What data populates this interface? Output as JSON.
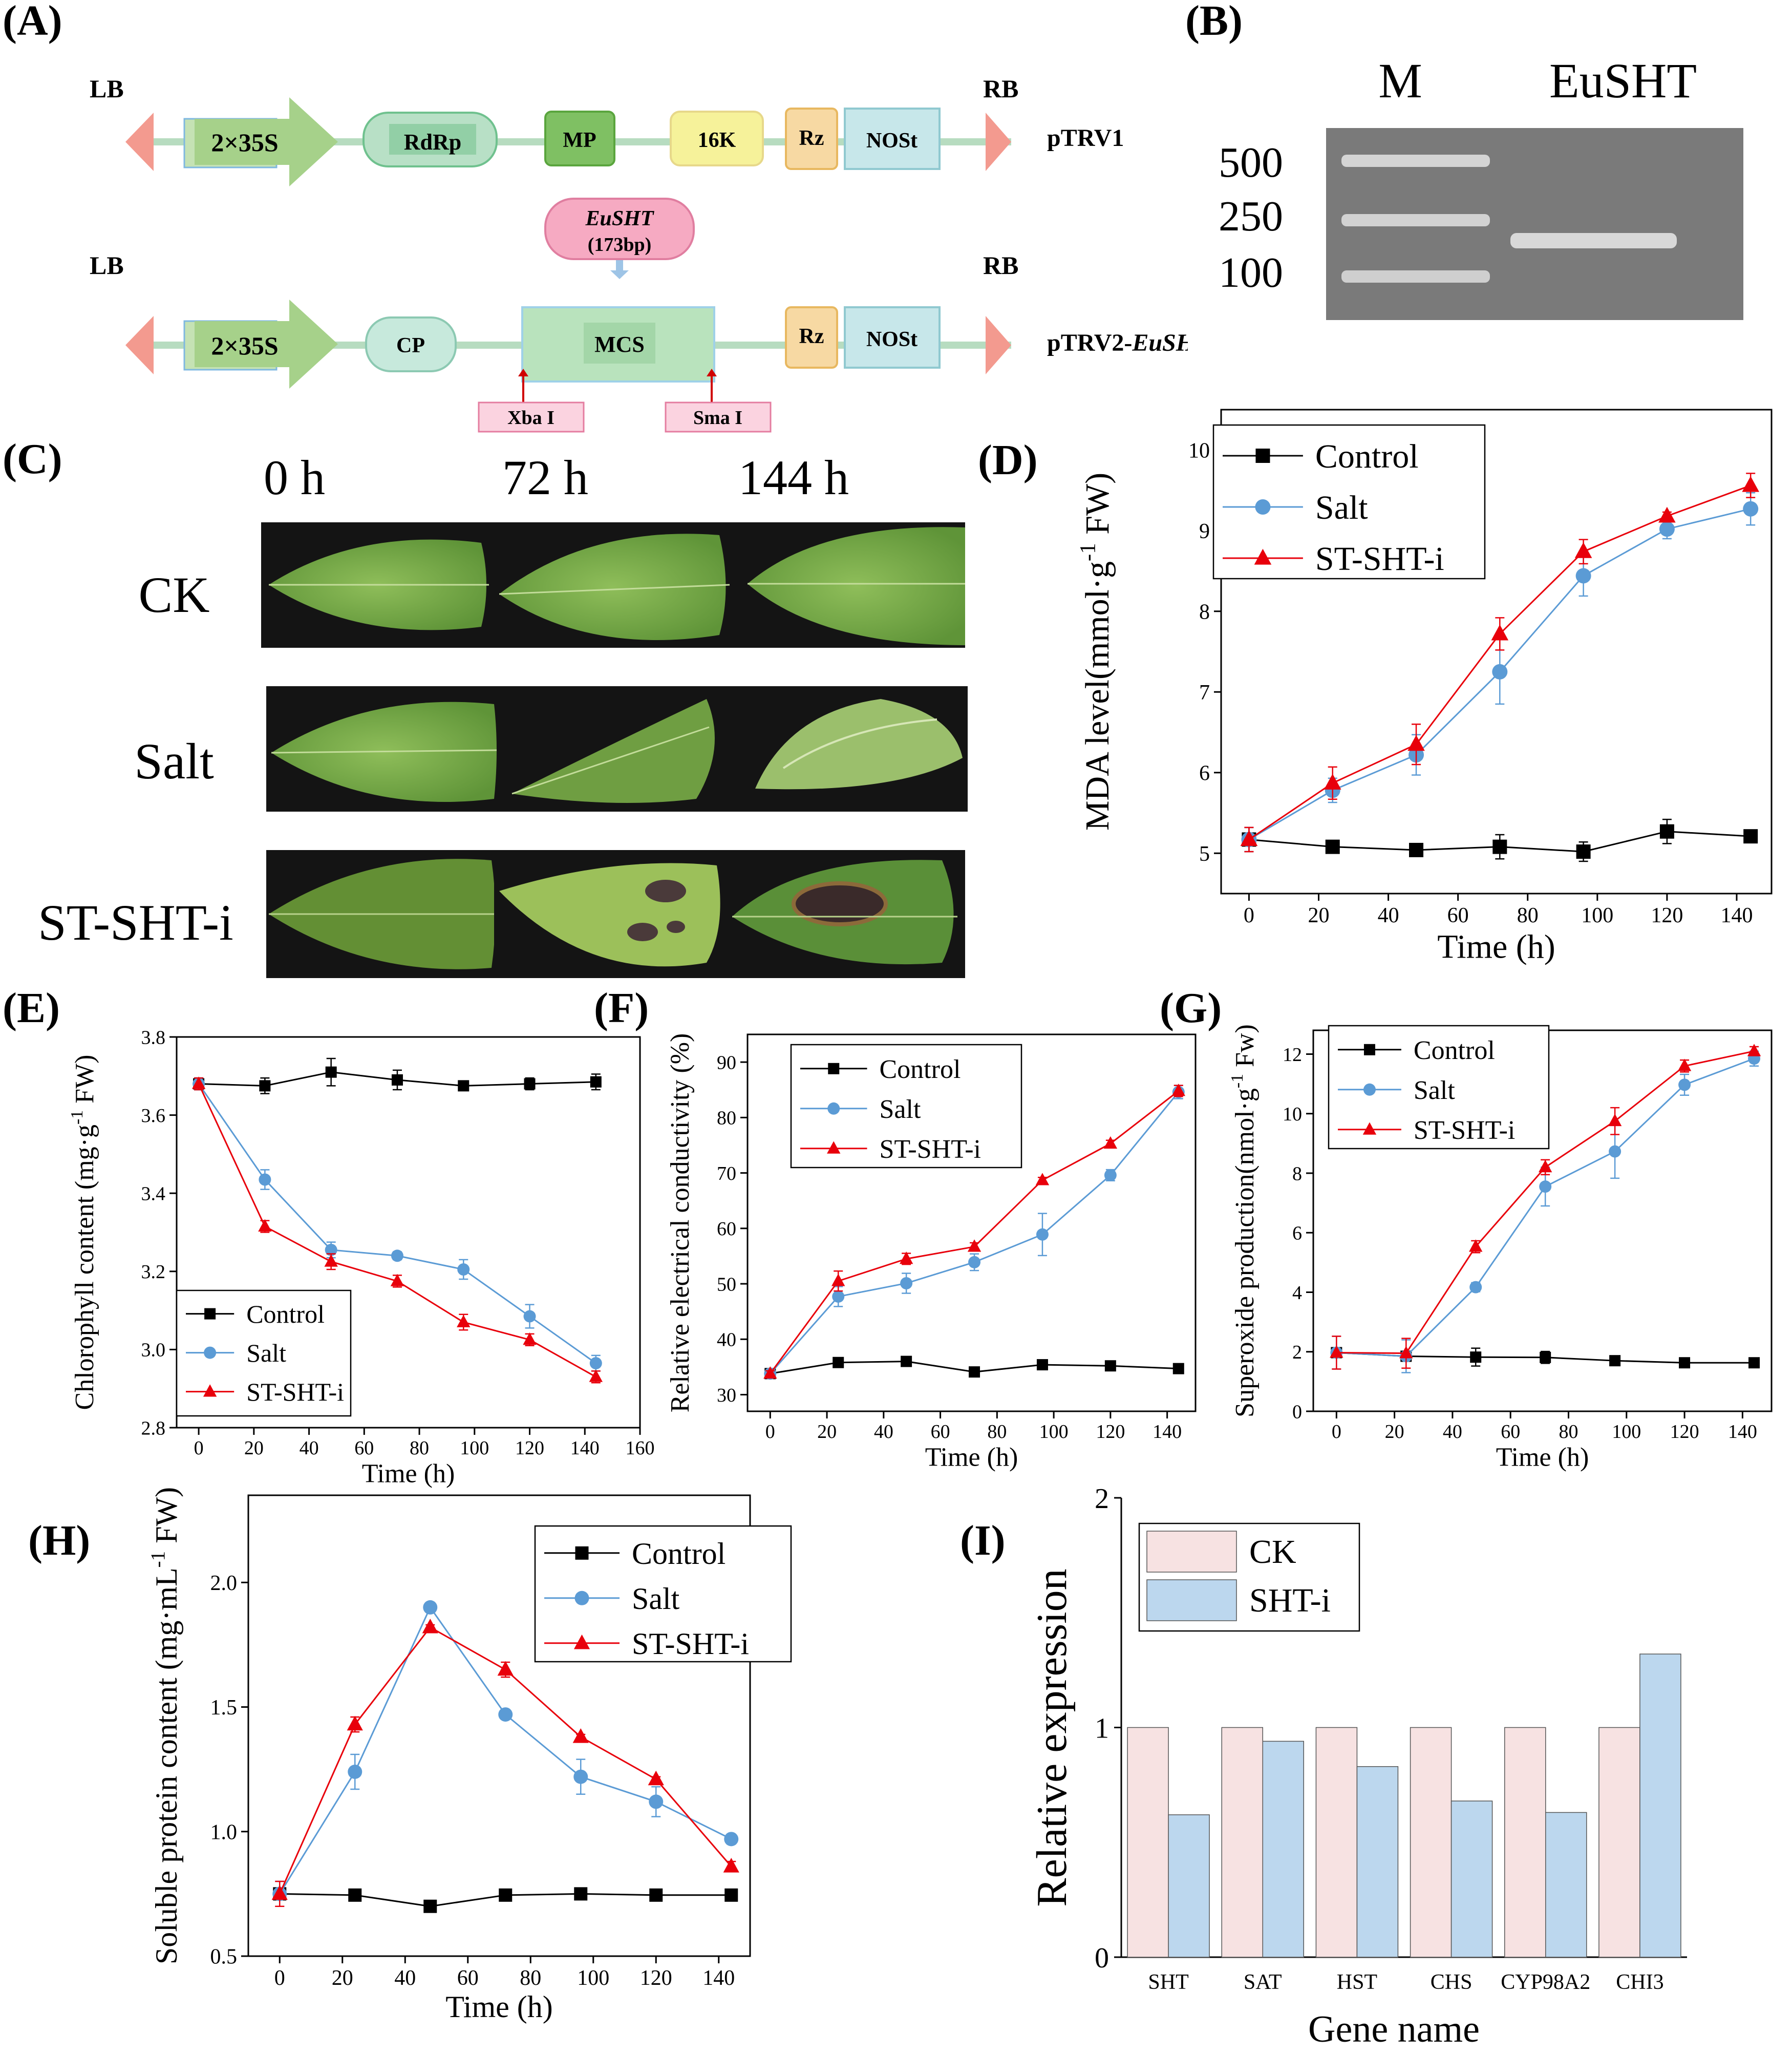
{
  "panel_labels": {
    "A": "(A)",
    "B": "(B)",
    "C": "(C)",
    "D": "(D)",
    "E": "(E)",
    "F": "(F)",
    "G": "(G)",
    "H": "(H)",
    "I": "(I)"
  },
  "constructs": {
    "ptrv1": {
      "name": "pTRV1",
      "lb": "LB",
      "rb": "RB",
      "elements": [
        "2×35S",
        "RdRp",
        "MP",
        "16K",
        "Rz",
        "NOSt"
      ]
    },
    "ptrv2": {
      "name_prefix": "pTRV2-",
      "name_gene": "EuSHT",
      "lb": "LB",
      "rb": "RB",
      "elements": [
        "2×35S",
        "CP",
        "MCS",
        "Rz",
        "NOSt"
      ],
      "insert_gene": "EuSHT",
      "insert_size": "(173bp)",
      "sites": [
        "Xba I",
        "Sma I"
      ]
    },
    "colors": {
      "arrow": "#a6d18a",
      "rdrp": "#b8e0c6",
      "mp": "#7fc063",
      "k16": "#f6f29a",
      "rz": "#f7d9a3",
      "nost": "#c7e7ea",
      "mcs": "#b9e3bd",
      "insert": "#f6aac2",
      "site": "#fbd3e0",
      "backbone": "#b7dcc0",
      "border": "#f39a8f"
    }
  },
  "gel": {
    "lane_labels": [
      "M",
      "EuSHT"
    ],
    "marker_sizes": [
      "500",
      "250",
      "100"
    ],
    "bg_color": "#7a7a7a"
  },
  "leaf_panel": {
    "time_labels": [
      "0 h",
      "72 h",
      "144 h"
    ],
    "row_labels": [
      "CK",
      "Salt",
      "ST-SHT-i"
    ]
  },
  "chart_data": [
    {
      "id": "D",
      "type": "line",
      "xlabel": "Time (h)",
      "ylabel_main": "MDA level(mmol·g",
      "ylabel_sup": "-1",
      "ylabel_tail": " FW)",
      "xlim": [
        -8,
        150
      ],
      "ylim": [
        4.5,
        10.5
      ],
      "xticks": [
        0,
        20,
        40,
        60,
        80,
        100,
        120,
        140
      ],
      "yticks": [
        5,
        6,
        7,
        8,
        9,
        10
      ],
      "x": [
        0,
        24,
        48,
        72,
        96,
        120,
        144
      ],
      "series": [
        {
          "name": "Control",
          "color": "#000000",
          "marker": "square",
          "values": [
            5.17,
            5.08,
            5.04,
            5.08,
            5.02,
            5.27,
            5.21
          ],
          "err": [
            0.15,
            0.07,
            0.05,
            0.15,
            0.12,
            0.15,
            0.05
          ]
        },
        {
          "name": "Salt",
          "color": "#5b9bd5",
          "marker": "circle",
          "values": [
            5.17,
            5.78,
            6.22,
            7.25,
            8.44,
            9.02,
            9.27
          ],
          "err": [
            0.15,
            0.15,
            0.25,
            0.4,
            0.25,
            0.12,
            0.2
          ]
        },
        {
          "name": "ST-SHT-i",
          "color": "#e8000b",
          "marker": "triangle",
          "values": [
            5.17,
            5.87,
            6.35,
            7.72,
            8.74,
            9.18,
            9.56
          ],
          "err": [
            0.15,
            0.2,
            0.25,
            0.2,
            0.15,
            0.05,
            0.15
          ]
        }
      ]
    },
    {
      "id": "E",
      "type": "line",
      "xlabel": "Time (h)",
      "ylabel_main": "Chlorophyll content (mg·g",
      "ylabel_sup": "-1",
      "ylabel_tail": " FW)",
      "xlim": [
        -8,
        160
      ],
      "ylim": [
        2.8,
        3.8
      ],
      "xticks": [
        0,
        20,
        40,
        60,
        80,
        100,
        120,
        140,
        160
      ],
      "yticks": [
        2.8,
        3.0,
        3.2,
        3.4,
        3.6,
        3.8
      ],
      "x": [
        0,
        24,
        48,
        72,
        96,
        120,
        144
      ],
      "series": [
        {
          "name": "Control",
          "color": "#000000",
          "marker": "square",
          "values": [
            3.68,
            3.675,
            3.71,
            3.69,
            3.675,
            3.68,
            3.685
          ],
          "err": [
            0.015,
            0.02,
            0.035,
            0.025,
            0.01,
            0.015,
            0.02
          ]
        },
        {
          "name": "Salt",
          "color": "#5b9bd5",
          "marker": "circle",
          "values": [
            3.68,
            3.435,
            3.255,
            3.24,
            3.205,
            3.085,
            2.965
          ],
          "err": [
            0.015,
            0.025,
            0.02,
            0.01,
            0.025,
            0.03,
            0.02
          ]
        },
        {
          "name": "ST-SHT-i",
          "color": "#e8000b",
          "marker": "triangle",
          "values": [
            3.68,
            3.315,
            3.225,
            3.175,
            3.07,
            3.025,
            2.93
          ],
          "err": [
            0.015,
            0.015,
            0.02,
            0.015,
            0.02,
            0.015,
            0.015
          ]
        }
      ]
    },
    {
      "id": "F",
      "type": "line",
      "xlabel": "Time (h)",
      "ylabel_main": "Relative electrical conductivity (%)",
      "ylabel_sup": "",
      "ylabel_tail": "",
      "xlim": [
        -8,
        150
      ],
      "ylim": [
        27,
        95
      ],
      "xticks": [
        0,
        20,
        40,
        60,
        80,
        100,
        120,
        140
      ],
      "yticks": [
        30,
        40,
        50,
        60,
        70,
        80,
        90
      ],
      "x": [
        0,
        24,
        48,
        72,
        96,
        120,
        144
      ],
      "series": [
        {
          "name": "Control",
          "color": "#000000",
          "marker": "square",
          "values": [
            33.8,
            35.8,
            36.0,
            34.1,
            35.4,
            35.2,
            34.7
          ],
          "err": [
            0.5,
            0.5,
            0.5,
            0.4,
            0.5,
            0.4,
            0.5
          ]
        },
        {
          "name": "Salt",
          "color": "#5b9bd5",
          "marker": "circle",
          "values": [
            33.8,
            47.7,
            50.1,
            53.9,
            58.9,
            69.6,
            84.6
          ],
          "err": [
            0.5,
            1.8,
            1.8,
            1.5,
            3.8,
            1.0,
            1.2
          ]
        },
        {
          "name": "ST-SHT-i",
          "color": "#e8000b",
          "marker": "triangle",
          "values": [
            33.8,
            50.5,
            54.5,
            56.7,
            68.7,
            75.3,
            84.8
          ],
          "err": [
            0.5,
            1.8,
            1.0,
            0.7,
            0.5,
            0.6,
            1.0
          ]
        }
      ]
    },
    {
      "id": "G",
      "type": "line",
      "xlabel": "Time (h)",
      "ylabel_main": "Superoxide production(nmol·g",
      "ylabel_sup": "-1",
      "ylabel_tail": " Fw)",
      "xlim": [
        -8,
        150
      ],
      "ylim": [
        0,
        12.8
      ],
      "xticks": [
        0,
        20,
        40,
        60,
        80,
        100,
        120,
        140
      ],
      "yticks": [
        0,
        2,
        4,
        6,
        8,
        10,
        12
      ],
      "x": [
        0,
        24,
        48,
        72,
        96,
        120,
        144
      ],
      "series": [
        {
          "name": "Control",
          "color": "#000000",
          "marker": "square",
          "values": [
            1.97,
            1.85,
            1.82,
            1.81,
            1.7,
            1.63,
            1.63
          ],
          "err": [
            0.1,
            0.1,
            0.3,
            0.2,
            0.15,
            0.05,
            0.05
          ]
        },
        {
          "name": "Salt",
          "color": "#5b9bd5",
          "marker": "circle",
          "values": [
            1.97,
            1.85,
            4.17,
            7.55,
            8.73,
            10.97,
            11.85
          ],
          "err": [
            0.55,
            0.55,
            0.15,
            0.65,
            0.9,
            0.35,
            0.25
          ]
        },
        {
          "name": "ST-SHT-i",
          "color": "#e8000b",
          "marker": "triangle",
          "values": [
            1.97,
            1.95,
            5.53,
            8.2,
            9.75,
            11.6,
            12.1
          ],
          "err": [
            0.55,
            0.5,
            0.2,
            0.25,
            0.45,
            0.2,
            0.15
          ]
        }
      ]
    },
    {
      "id": "H",
      "type": "line",
      "xlabel": "Time (h)",
      "ylabel_main": "Soluble protein content (mg·mL",
      "ylabel_sup": "-1",
      "ylabel_tail": " FW)",
      "xlim": [
        -10,
        150
      ],
      "ylim": [
        0.5,
        2.35
      ],
      "xticks": [
        0,
        20,
        40,
        60,
        80,
        100,
        120,
        140
      ],
      "yticks": [
        0.5,
        1.0,
        1.5,
        2.0
      ],
      "x": [
        0,
        24,
        48,
        72,
        96,
        120,
        144
      ],
      "series": [
        {
          "name": "Control",
          "color": "#000000",
          "marker": "square",
          "values": [
            0.75,
            0.745,
            0.7,
            0.745,
            0.75,
            0.745,
            0.745
          ],
          "err": [
            0.01,
            0.01,
            0.01,
            0.01,
            0.01,
            0.01,
            0.01
          ]
        },
        {
          "name": "Salt",
          "color": "#5b9bd5",
          "marker": "circle",
          "values": [
            0.75,
            1.24,
            1.9,
            1.47,
            1.22,
            1.12,
            0.97
          ],
          "err": [
            0.05,
            0.07,
            0.01,
            0.01,
            0.07,
            0.06,
            0.02
          ]
        },
        {
          "name": "ST-SHT-i",
          "color": "#e8000b",
          "marker": "triangle",
          "values": [
            0.75,
            1.43,
            1.82,
            1.65,
            1.38,
            1.21,
            0.86
          ],
          "err": [
            0.05,
            0.03,
            0.01,
            0.03,
            0.01,
            0.01,
            0.02
          ]
        }
      ]
    },
    {
      "id": "I",
      "type": "bar",
      "xlabel": "Gene name",
      "ylabel": "Relative expression",
      "ylim": [
        0,
        2
      ],
      "yticks": [
        0,
        1,
        2
      ],
      "categories": [
        "SHT",
        "SAT",
        "HST",
        "CHS",
        "CYP98A2",
        "CHI3"
      ],
      "series": [
        {
          "name": "CK",
          "color": "#f7e2e2",
          "values": [
            1,
            1,
            1,
            1,
            1,
            1
          ]
        },
        {
          "name": "SHT-i",
          "color": "#bcd7ee",
          "values": [
            0.62,
            0.94,
            0.83,
            0.68,
            0.63,
            1.32
          ]
        }
      ]
    }
  ]
}
